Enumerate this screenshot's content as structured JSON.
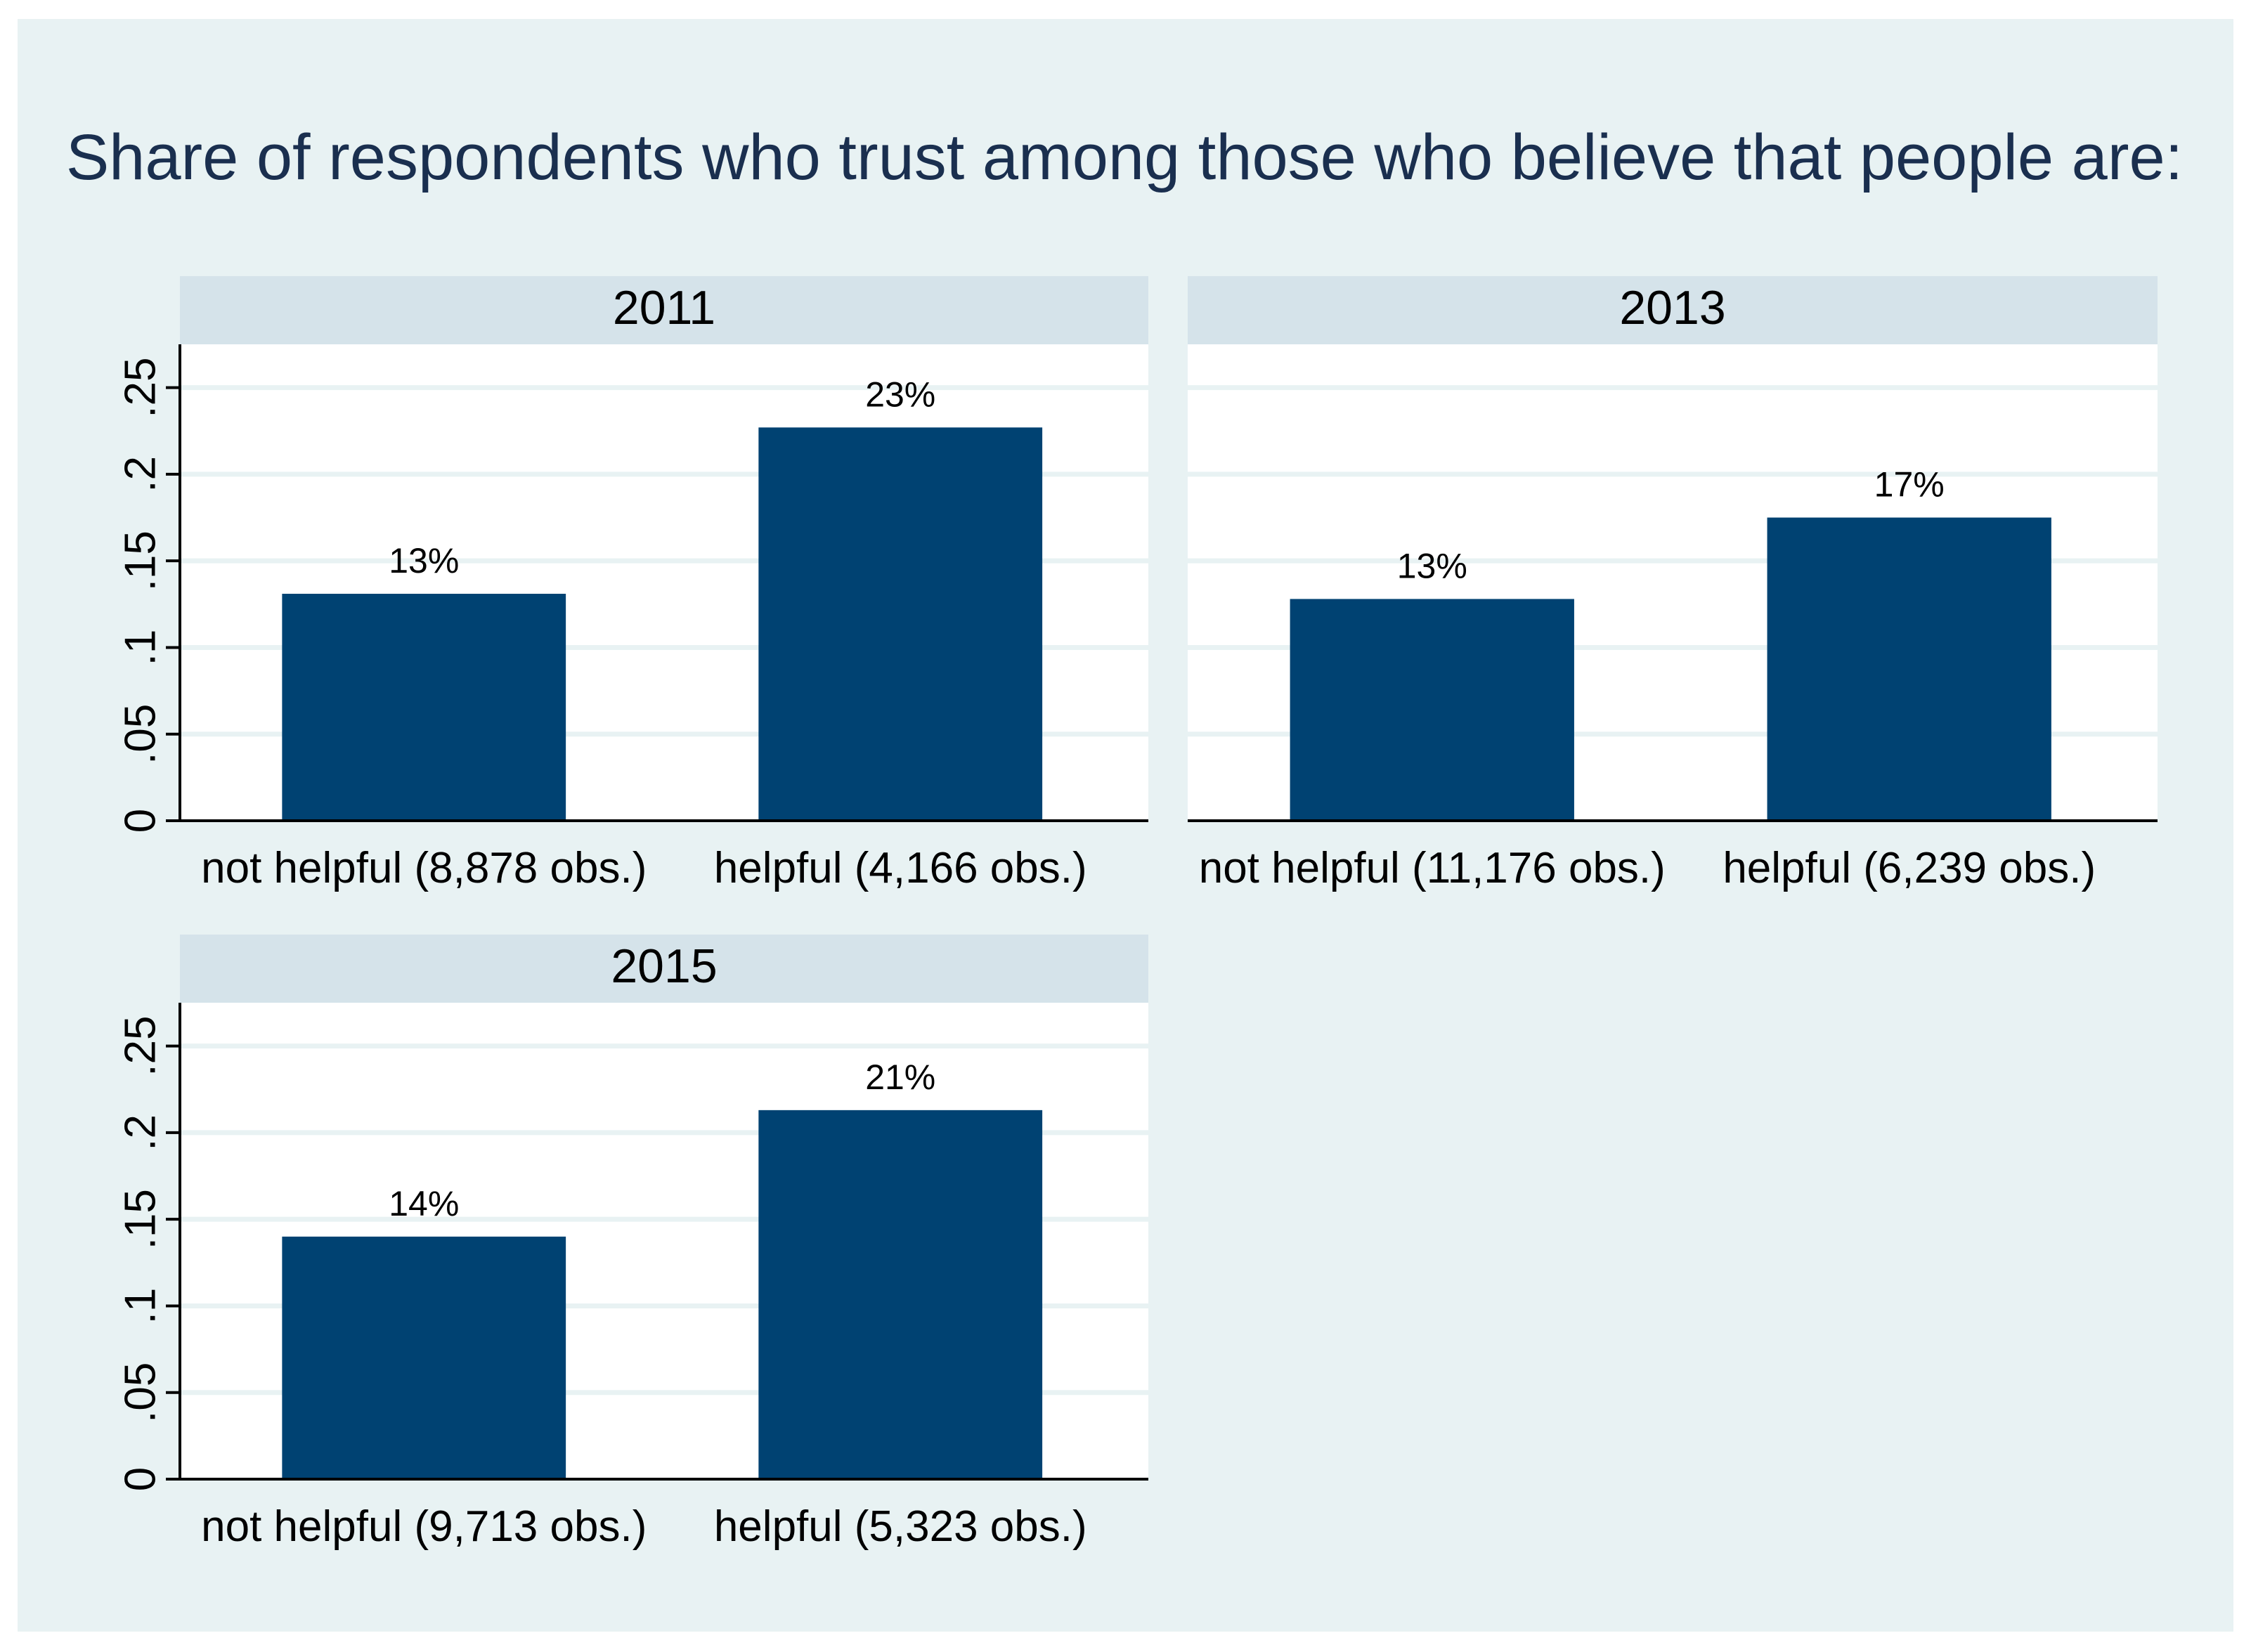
{
  "colors": {
    "outer_bg": "#ffffff",
    "plot_region_bg": "#e8f2f3",
    "panel_bg": "#ffffff",
    "strip_bg": "#d5e3ea",
    "bar": "#004272",
    "title": "#1a2f4f",
    "grid": "#e8f2f3",
    "axis": "#000000",
    "text": "#000000"
  },
  "chart_data": {
    "type": "bar",
    "title": "Share of respondents who trust among those who believe that people are:",
    "xlabel": "",
    "ylabel": "",
    "ylim": [
      0,
      0.275
    ],
    "grid": true,
    "yticks": [
      0,
      0.05,
      0.1,
      0.15,
      0.2,
      0.25
    ],
    "ytick_labels": [
      "0",
      ".05",
      ".1",
      ".15",
      ".2",
      ".25"
    ],
    "panels": [
      {
        "title": "2011",
        "categories": [
          "not helpful (8,878 obs.)",
          "helpful (4,166 obs.)"
        ],
        "values": [
          0.131,
          0.227
        ],
        "data_labels": [
          "13%",
          "23%"
        ],
        "show_yaxis": true
      },
      {
        "title": "2013",
        "categories": [
          "not helpful (11,176 obs.)",
          "helpful (6,239 obs.)"
        ],
        "values": [
          0.128,
          0.175
        ],
        "data_labels": [
          "13%",
          "17%"
        ],
        "show_yaxis": false
      },
      {
        "title": "2015",
        "categories": [
          "not helpful (9,713  obs.)",
          "helpful (5,323 obs.)"
        ],
        "values": [
          0.14,
          0.213
        ],
        "data_labels": [
          "14%",
          "21%"
        ],
        "show_yaxis": true
      }
    ]
  }
}
